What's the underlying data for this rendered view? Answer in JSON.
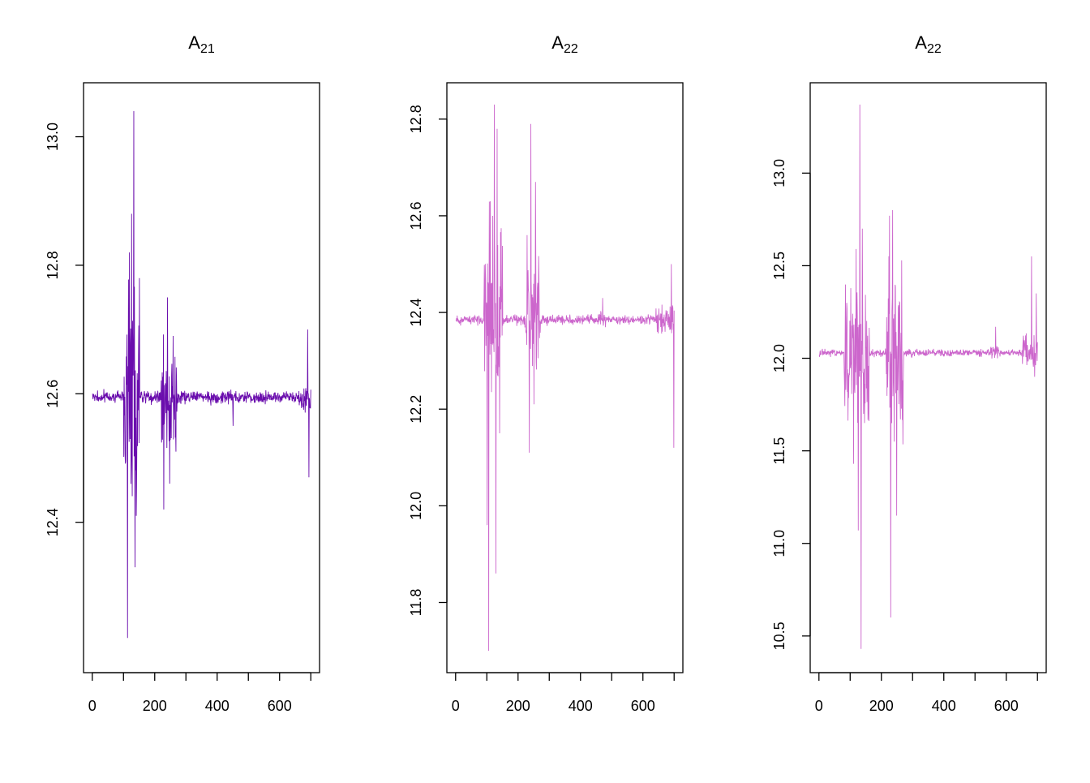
{
  "chart_data": [
    {
      "type": "line",
      "title": "A",
      "title_sub": "21",
      "color": "#6A0DAD",
      "series": [
        {
          "name": ""
        }
      ],
      "xlim": [
        0,
        700
      ],
      "ylim": [
        12.2,
        13.05
      ],
      "x_ticks": [
        0,
        200,
        400,
        600
      ],
      "x_tick_labels": [
        "0",
        "200",
        "400",
        "600"
      ],
      "x_minor_ticks": [
        100,
        300,
        500,
        700
      ],
      "y_ticks": [
        12.4,
        12.6,
        12.8,
        13.0
      ],
      "y_tick_labels": [
        "12.4",
        "12.6",
        "12.8",
        "13.0"
      ],
      "n_points": 700,
      "baseline": 12.595,
      "noise": 0.006,
      "bursts": [
        [
          100,
          150,
          0.09
        ],
        [
          220,
          270,
          0.045
        ],
        [
          430,
          450,
          0.008
        ],
        [
          660,
          700,
          0.012
        ]
      ],
      "spikes": [
        [
          112,
          12.22
        ],
        [
          118,
          12.82
        ],
        [
          125,
          12.88
        ],
        [
          132,
          13.04
        ],
        [
          136,
          12.33
        ],
        [
          140,
          12.41
        ],
        [
          150,
          12.78
        ],
        [
          228,
          12.42
        ],
        [
          240,
          12.75
        ],
        [
          247,
          12.46
        ],
        [
          258,
          12.69
        ],
        [
          267,
          12.51
        ],
        [
          450,
          12.55
        ],
        [
          689,
          12.7
        ],
        [
          693,
          12.47
        ]
      ]
    },
    {
      "type": "line",
      "title": "A",
      "title_sub": "22",
      "color": "#CC66CC",
      "series": [
        {
          "name": ""
        }
      ],
      "xlim": [
        0,
        700
      ],
      "ylim": [
        11.7,
        12.83
      ],
      "x_ticks": [
        0,
        200,
        400,
        600
      ],
      "x_tick_labels": [
        "0",
        "200",
        "400",
        "600"
      ],
      "x_minor_ticks": [
        100,
        300,
        500,
        700
      ],
      "y_ticks": [
        11.8,
        12.0,
        12.2,
        12.4,
        12.6,
        12.8
      ],
      "y_tick_labels": [
        "11.8",
        "12.0",
        "12.2",
        "12.4",
        "12.6",
        "12.8"
      ],
      "n_points": 700,
      "baseline": 12.385,
      "noise": 0.006,
      "bursts": [
        [
          90,
          150,
          0.12
        ],
        [
          220,
          270,
          0.08
        ],
        [
          460,
          480,
          0.012
        ],
        [
          640,
          700,
          0.02
        ]
      ],
      "spikes": [
        [
          100,
          11.96
        ],
        [
          105,
          11.7
        ],
        [
          110,
          12.63
        ],
        [
          118,
          12.6
        ],
        [
          123,
          12.83
        ],
        [
          128,
          11.86
        ],
        [
          132,
          12.78
        ],
        [
          140,
          12.15
        ],
        [
          228,
          12.56
        ],
        [
          235,
          12.11
        ],
        [
          240,
          12.79
        ],
        [
          250,
          12.21
        ],
        [
          255,
          12.67
        ],
        [
          470,
          12.43
        ],
        [
          690,
          12.5
        ],
        [
          698,
          12.12
        ]
      ]
    },
    {
      "type": "line",
      "title": "A",
      "title_sub": "22",
      "color": "#CC66CC",
      "series": [
        {
          "name": ""
        }
      ],
      "xlim": [
        0,
        700
      ],
      "ylim": [
        10.42,
        13.37
      ],
      "x_ticks": [
        0,
        200,
        400,
        600
      ],
      "x_tick_labels": [
        "0",
        "200",
        "400",
        "600"
      ],
      "x_minor_ticks": [
        100,
        300,
        500,
        700
      ],
      "y_ticks": [
        10.5,
        11.0,
        11.5,
        12.0,
        12.5,
        13.0
      ],
      "y_tick_labels": [
        "10.5",
        "11.0",
        "11.5",
        "12.0",
        "12.5",
        "13.0"
      ],
      "n_points": 700,
      "baseline": 12.03,
      "noise": 0.012,
      "bursts": [
        [
          80,
          160,
          0.22
        ],
        [
          215,
          270,
          0.25
        ],
        [
          550,
          575,
          0.03
        ],
        [
          650,
          700,
          0.06
        ]
      ],
      "spikes": [
        [
          110,
          11.43
        ],
        [
          118,
          12.59
        ],
        [
          125,
          11.07
        ],
        [
          130,
          13.37
        ],
        [
          134,
          10.43
        ],
        [
          138,
          12.7
        ],
        [
          145,
          11.65
        ],
        [
          225,
          12.77
        ],
        [
          229,
          10.6
        ],
        [
          235,
          12.8
        ],
        [
          240,
          11.55
        ],
        [
          248,
          11.15
        ],
        [
          565,
          12.17
        ],
        [
          680,
          12.55
        ],
        [
          690,
          11.9
        ],
        [
          695,
          12.35
        ]
      ]
    }
  ]
}
